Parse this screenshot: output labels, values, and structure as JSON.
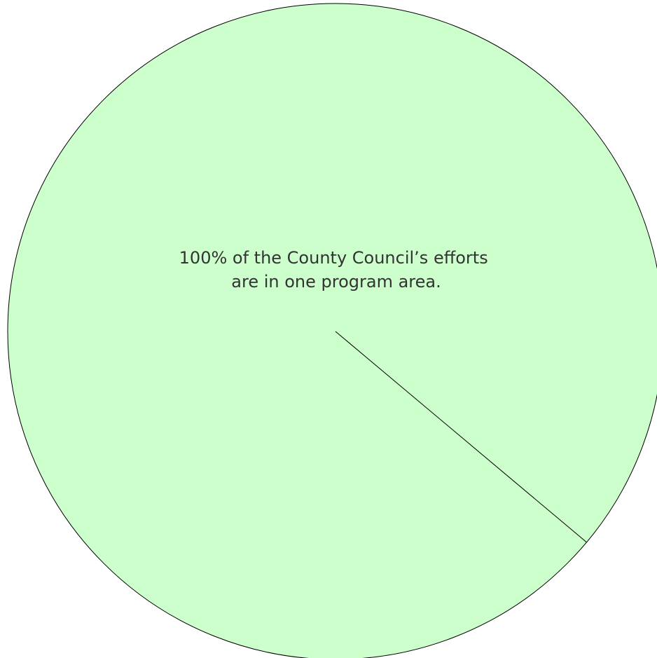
{
  "chart_data": {
    "type": "pie",
    "slices": [
      {
        "value": 100,
        "color": "#ccffcc"
      }
    ],
    "annotation": {
      "lines": [
        "100% of the County Council’s efforts",
        "are in one program area."
      ]
    },
    "stroke_color": "#000000",
    "start_angle_deg": 40
  }
}
